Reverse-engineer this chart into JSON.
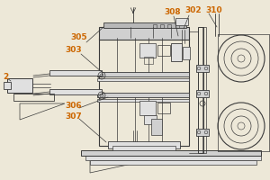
{
  "bg_color": "#ede8d8",
  "line_color": "#3a3a3a",
  "label_color": "#cc6600",
  "figsize": [
    3.0,
    2.0
  ],
  "dpi": 100
}
